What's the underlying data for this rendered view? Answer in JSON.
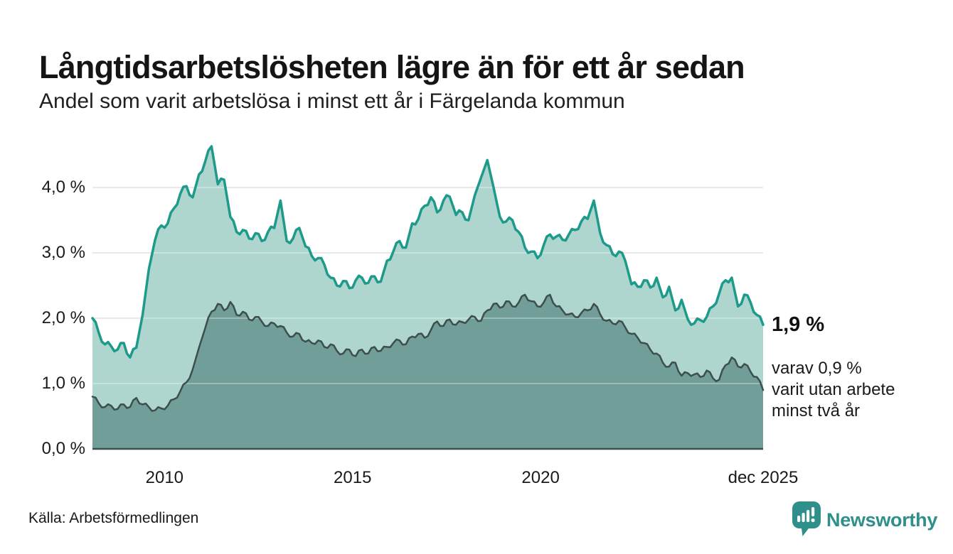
{
  "chart_data": {
    "type": "area",
    "title": "Långtidsarbetslösheten lägre än för ett år sedan",
    "subtitle": "Andel som varit arbetslösa i minst ett år i Färgelanda kommun",
    "xlabel": "",
    "ylabel": "",
    "ylim": [
      0,
      4.8
    ],
    "x_range": [
      2008.0833,
      2025.9166
    ],
    "x_step": 0.1666667,
    "grid": "horizontal",
    "legend_position": "none",
    "y_axis_ticks": [
      {
        "value": 0,
        "label": "0,0 %"
      },
      {
        "value": 1,
        "label": "1,0 %"
      },
      {
        "value": 2,
        "label": "2,0 %"
      },
      {
        "value": 3,
        "label": "3,0 %"
      },
      {
        "value": 4,
        "label": "4,0 %"
      }
    ],
    "x_axis_ticks": [
      {
        "value": 2010,
        "label": "2010"
      },
      {
        "value": 2015,
        "label": "2015"
      },
      {
        "value": 2020,
        "label": "2020"
      },
      {
        "value": 2025.9166,
        "label": "dec 2025"
      }
    ],
    "series": [
      {
        "name": "Andel som varit arbetslösa minst ett år",
        "stroke": "#1d9a8a",
        "fill": "#aed6cf",
        "stroke_width": 3.5,
        "latest": 1.9,
        "values": [
          2.0,
          1.78,
          1.6,
          1.57,
          1.52,
          1.62,
          1.4,
          1.55,
          2.05,
          2.75,
          3.2,
          3.42,
          3.45,
          3.68,
          3.9,
          4.02,
          3.85,
          4.2,
          4.4,
          4.63,
          4.05,
          4.12,
          3.55,
          3.32,
          3.35,
          3.22,
          3.3,
          3.18,
          3.32,
          3.38,
          3.8,
          3.18,
          3.22,
          3.38,
          3.1,
          2.95,
          2.92,
          2.82,
          2.62,
          2.5,
          2.57,
          2.46,
          2.58,
          2.62,
          2.54,
          2.64,
          2.56,
          2.88,
          3.02,
          3.18,
          3.08,
          3.45,
          3.52,
          3.72,
          3.85,
          3.62,
          3.8,
          3.86,
          3.58,
          3.62,
          3.5,
          3.88,
          4.15,
          4.42,
          4.0,
          3.55,
          3.48,
          3.5,
          3.32,
          3.08,
          3.02,
          2.92,
          3.12,
          3.28,
          3.25,
          3.2,
          3.28,
          3.35,
          3.48,
          3.52,
          3.8,
          3.3,
          3.12,
          2.98,
          3.02,
          2.88,
          2.52,
          2.48,
          2.58,
          2.47,
          2.62,
          2.32,
          2.48,
          2.12,
          2.28,
          1.98,
          1.92,
          1.97,
          2.02,
          2.18,
          2.38,
          2.58,
          2.62,
          2.18,
          2.36,
          2.24,
          2.05,
          1.9
        ]
      },
      {
        "name": "varav arbetslösa minst två år",
        "stroke": "#3c4f4d",
        "fill": "#719e98",
        "stroke_width": 2.5,
        "latest": 0.9,
        "values": [
          0.8,
          0.7,
          0.64,
          0.66,
          0.61,
          0.68,
          0.64,
          0.78,
          0.68,
          0.64,
          0.59,
          0.62,
          0.66,
          0.76,
          0.88,
          1.02,
          1.22,
          1.55,
          1.85,
          2.1,
          2.22,
          2.12,
          2.25,
          2.05,
          2.1,
          1.98,
          2.02,
          1.95,
          1.88,
          1.92,
          1.88,
          1.78,
          1.72,
          1.76,
          1.64,
          1.62,
          1.66,
          1.56,
          1.6,
          1.5,
          1.46,
          1.52,
          1.42,
          1.52,
          1.46,
          1.56,
          1.5,
          1.56,
          1.62,
          1.66,
          1.6,
          1.72,
          1.76,
          1.7,
          1.82,
          1.95,
          1.88,
          1.98,
          1.9,
          1.94,
          1.98,
          2.02,
          1.96,
          2.12,
          2.22,
          2.16,
          2.26,
          2.18,
          2.24,
          2.36,
          2.26,
          2.18,
          2.24,
          2.36,
          2.18,
          2.12,
          2.06,
          2.02,
          2.08,
          2.12,
          2.22,
          2.06,
          1.96,
          1.92,
          1.96,
          1.86,
          1.76,
          1.7,
          1.62,
          1.52,
          1.46,
          1.32,
          1.26,
          1.32,
          1.12,
          1.16,
          1.14,
          1.1,
          1.2,
          1.08,
          1.06,
          1.28,
          1.4,
          1.26,
          1.3,
          1.18,
          1.1,
          0.9
        ]
      }
    ],
    "annotations": {
      "latest_value": "1,9 %",
      "secondary_note": "varav 0,9 %\nvarit utan arbete\nminst två år"
    }
  },
  "footer": {
    "source": "Källa: Arbetsförmedlingen",
    "brand": "Newsworthy"
  },
  "colors": {
    "accent_teal": "#1d9a8a",
    "fill_light": "#aed6cf",
    "fill_dark": "#719e98",
    "stroke_dark": "#3c4f4d",
    "gridline": "#e0e0e0",
    "brand_teal": "#2e8f8b",
    "text": "#1a1a1a"
  }
}
